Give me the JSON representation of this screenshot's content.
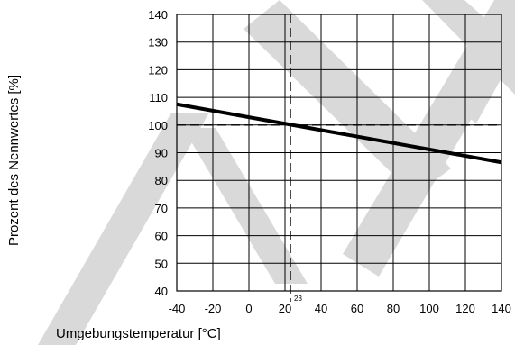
{
  "chart_data": {
    "type": "line",
    "title": "",
    "xlabel": "Umgebungstemperatur [°C]",
    "ylabel": "Prozent des Nennwertes [%]",
    "xlim": [
      -40,
      140
    ],
    "ylim": [
      40,
      140
    ],
    "x_ticks": [
      -40,
      -20,
      0,
      20,
      40,
      60,
      80,
      100,
      120,
      140
    ],
    "y_ticks": [
      40,
      50,
      60,
      70,
      80,
      90,
      100,
      110,
      120,
      130,
      140
    ],
    "grid": true,
    "series": [
      {
        "x": [
          -40,
          140
        ],
        "y": [
          107.5,
          86.5
        ]
      }
    ],
    "reference_lines": {
      "x": {
        "value": 23,
        "label": "23"
      },
      "y": {
        "value": 100
      }
    },
    "colors": {
      "line": "#000000",
      "grid": "#000000",
      "watermark": "#d9d9d9"
    }
  }
}
